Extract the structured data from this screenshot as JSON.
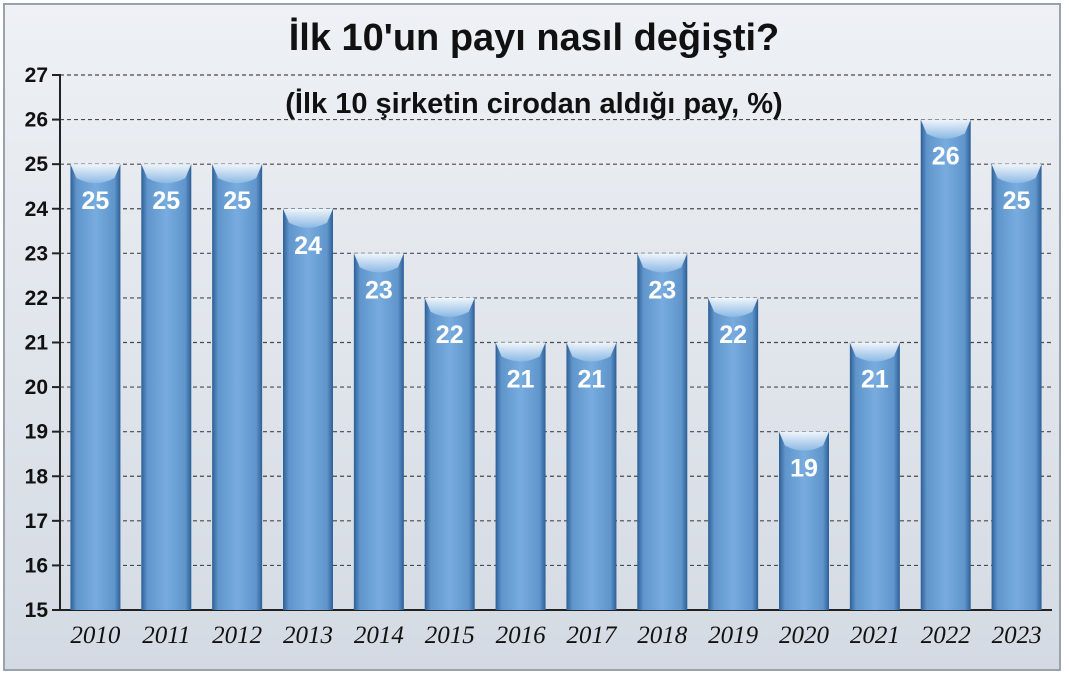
{
  "chart_data": {
    "type": "bar",
    "title": "İlk 10'un payı nasıl değişti?",
    "subtitle": "(İlk 10 şirketin cirodan aldığı pay, %)",
    "xlabel": "",
    "ylabel": "",
    "categories": [
      "2010",
      "2011",
      "2012",
      "2013",
      "2014",
      "2015",
      "2016",
      "2017",
      "2018",
      "2019",
      "2020",
      "2021",
      "2022",
      "2023"
    ],
    "values": [
      25,
      25,
      25,
      24,
      23,
      22,
      21,
      21,
      23,
      22,
      19,
      21,
      26,
      25
    ],
    "ylim": [
      15,
      27
    ],
    "yticks": [
      "15",
      "16",
      "17",
      "18",
      "19",
      "20",
      "21",
      "22",
      "23",
      "24",
      "25",
      "26",
      "27"
    ],
    "grid": true,
    "grid_style": "dashed horizontal",
    "data_labels": "inside bar top",
    "colors": {
      "background": "#dde2ea",
      "bar": "#6fa3d6",
      "bar_edge": "#2d5f96",
      "bar_cap": "#a7c8ea",
      "grid": "#4a4a4a",
      "text": "#111111",
      "bar_label": "#ffffff"
    }
  }
}
